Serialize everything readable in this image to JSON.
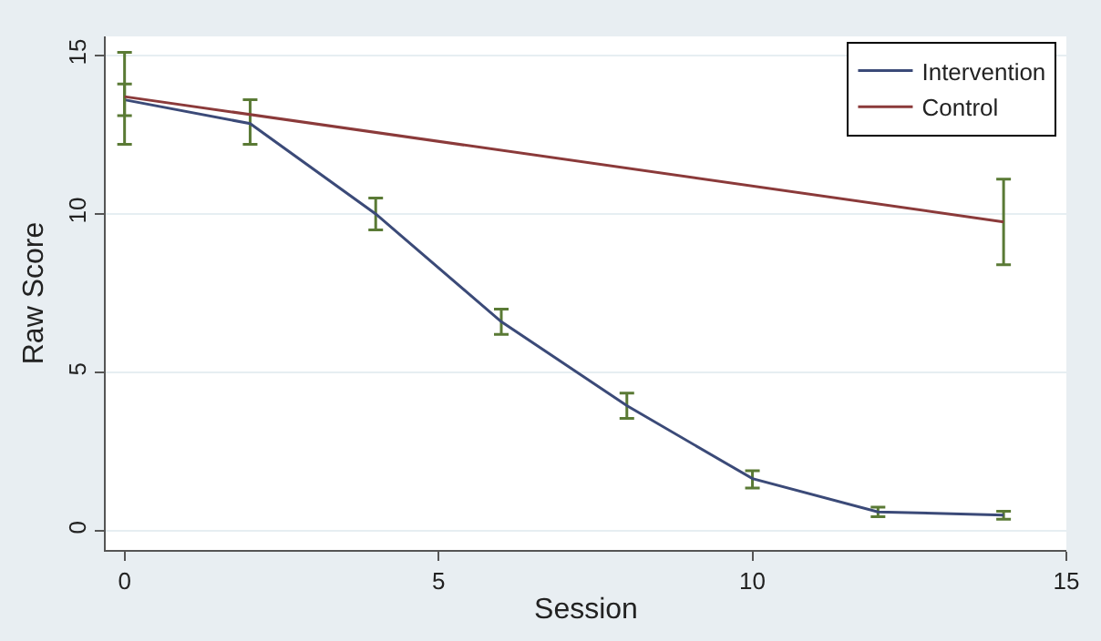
{
  "chart_data": {
    "type": "line",
    "xlabel": "Session",
    "ylabel": "Raw Score",
    "xlim": [
      -0.3,
      15
    ],
    "xticks": [
      0,
      5,
      10,
      15
    ],
    "ylim": [
      -0.6,
      15.6
    ],
    "yticks": [
      0,
      5,
      10,
      15
    ],
    "grid": "y",
    "legend": "top right",
    "marker": "none",
    "line_style": "solid",
    "series": [
      {
        "name": "Intervention",
        "color": "#3b4a78",
        "x": [
          0,
          2,
          4,
          6,
          8,
          10,
          12,
          14
        ],
        "values": [
          13.6,
          12.85,
          10.0,
          6.6,
          3.95,
          1.65,
          0.6,
          0.5
        ],
        "errors": [
          [
            13.1,
            14.1
          ],
          [
            12.2,
            13.6
          ],
          [
            9.5,
            10.5
          ],
          [
            6.2,
            7.0
          ],
          [
            3.55,
            4.35
          ],
          [
            1.35,
            1.9
          ],
          [
            0.45,
            0.75
          ],
          [
            0.37,
            0.62
          ]
        ]
      },
      {
        "name": "Control",
        "color": "#8b3a3a",
        "x": [
          0,
          14
        ],
        "values": [
          13.7,
          9.75
        ],
        "errors": [
          [
            12.2,
            15.1
          ],
          [
            8.4,
            11.1
          ]
        ]
      }
    ]
  }
}
